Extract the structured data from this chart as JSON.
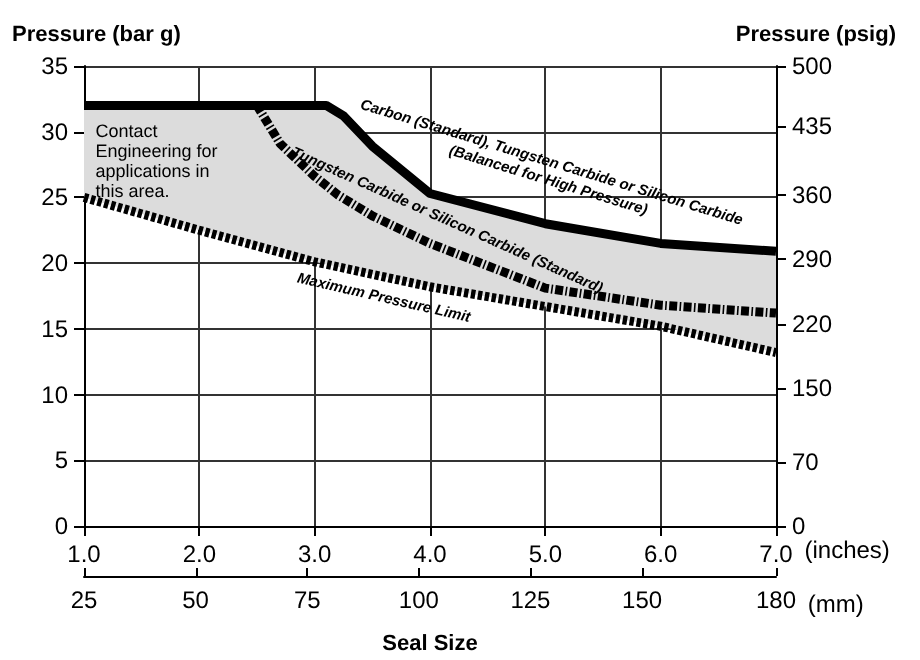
{
  "chart_data": {
    "type": "line",
    "xlabel": "(inches)",
    "x2label": "(mm)",
    "ylabel": "Pressure (bar g)",
    "y2label": "Pressure (psig)",
    "annotations": [
      "Contact Engineering for applications in this area.",
      "Seal Size"
    ],
    "xlim": [
      1,
      7
    ],
    "xticks": [
      {
        "value": 1,
        "label": "1.0"
      },
      {
        "value": 2,
        "label": "2.0"
      },
      {
        "value": 3,
        "label": "3.0"
      },
      {
        "value": 4,
        "label": "4.0"
      },
      {
        "value": 5,
        "label": "5.0"
      },
      {
        "value": 6,
        "label": "6.0"
      },
      {
        "value": 7,
        "label": "7.0"
      }
    ],
    "x2lim": [
      25,
      180
    ],
    "x2ticks": [
      25,
      50,
      75,
      100,
      125,
      150,
      180
    ],
    "ylim": [
      0,
      35
    ],
    "yticks": [
      0,
      5,
      10,
      15,
      20,
      25,
      30,
      35
    ],
    "y2lim": [
      0,
      500
    ],
    "y2ticks": [
      0,
      70,
      150,
      220,
      290,
      360,
      435,
      500
    ],
    "grid": true,
    "marker": "none",
    "series": [
      {
        "name": "Carbon (Standard), Tungsten Carbide or Silicon Carbide (Balanced for High Pressure)",
        "color": "#000000",
        "line_style": "solid",
        "x": [
          1,
          2,
          3.1,
          3.25,
          3.5,
          4,
          5,
          6,
          7
        ],
        "values": [
          32,
          32,
          32,
          31.2,
          28.9,
          25.3,
          23.0,
          21.5,
          20.9
        ]
      },
      {
        "name": "Tungsten Carbide or Silicon Carbide (Standard)",
        "color": "#000000",
        "line_style": "dashdot",
        "x": [
          1,
          2.5,
          2.7,
          3.0,
          3.2,
          3.5,
          4,
          5,
          6,
          7
        ],
        "values": [
          32,
          32,
          29.1,
          26.6,
          25.2,
          23.6,
          21.5,
          18.1,
          16.8,
          16.2
        ]
      },
      {
        "name": "Maximum Pressure Limit",
        "color": "#000000",
        "line_style": "dashed",
        "x": [
          1,
          2,
          3,
          4,
          5,
          6,
          7
        ],
        "values": [
          25,
          22.5,
          20.1,
          18.2,
          16.7,
          15.2,
          13.2
        ]
      }
    ]
  }
}
